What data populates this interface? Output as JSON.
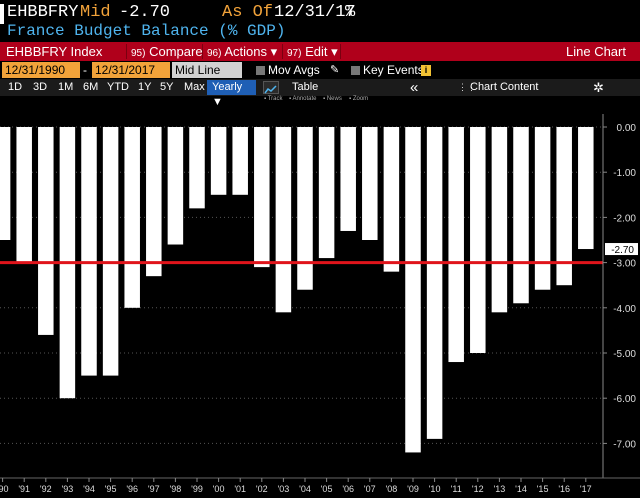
{
  "header": {
    "ticker": "EHBBFRY",
    "mid_label": "Mid",
    "mid_value": "-2.70",
    "asof_label": "As Of",
    "asof_value": "12/31/17",
    "pct_symbol": "%",
    "subtitle": "France Budget Balance (% GDP)"
  },
  "toolbar": {
    "index_label": "EHBBFRY Index",
    "compare_num": "95)",
    "compare_label": "Compare",
    "actions_num": "96)",
    "actions_label": "Actions ▾",
    "edit_num": "97)",
    "edit_label": "Edit ▾",
    "chart_type": "Line Chart"
  },
  "range_bar": {
    "start_date": "12/31/1990",
    "dash": "-",
    "end_date": "12/31/2017",
    "mode": "Mid Line",
    "mov_avgs": "Mov Avgs",
    "key_events": "Key Events",
    "key_events_badge": "i"
  },
  "period_bar": {
    "periods": [
      "1D",
      "3D",
      "1M",
      "6M",
      "YTD",
      "1Y",
      "5Y",
      "Max"
    ],
    "frequency": "Yearly ▼",
    "table_label": "Table",
    "collapse": "«",
    "chart_content": "Chart Content",
    "gear": "✲"
  },
  "chart_tools": {
    "track": "Track",
    "annotate": "Annotate",
    "news": "News",
    "zoom": "Zoom"
  },
  "colors": {
    "accent_orange": "#f2a33a",
    "toolbar_red": "#b0001b",
    "subtitle_blue": "#4fb4ee",
    "reference_line": "#e0141b",
    "bar_fill": "#ffffff"
  },
  "chart_data": {
    "type": "bar",
    "title": "France Budget Balance (% GDP)",
    "categories": [
      "'90",
      "'91",
      "'92",
      "'93",
      "'94",
      "'95",
      "'96",
      "'97",
      "'98",
      "'99",
      "'00",
      "'01",
      "'02",
      "'03",
      "'04",
      "'05",
      "'06",
      "'07",
      "'08",
      "'09",
      "'10",
      "'11",
      "'12",
      "'13",
      "'14",
      "'15",
      "'16",
      "'17"
    ],
    "values": [
      -2.5,
      -3.0,
      -4.6,
      -6.0,
      -5.5,
      -5.5,
      -4.0,
      -3.3,
      -2.6,
      -1.8,
      -1.5,
      -1.5,
      -3.1,
      -4.1,
      -3.6,
      -2.9,
      -2.3,
      -2.5,
      -3.2,
      -7.2,
      -6.9,
      -5.2,
      -5.0,
      -4.1,
      -3.9,
      -3.6,
      -3.5,
      -2.7
    ],
    "ylim": [
      -7.5,
      0
    ],
    "yticks": [
      0,
      -1,
      -2,
      -3,
      -4,
      -5,
      -6,
      -7
    ],
    "ytick_labels": [
      "0.00",
      "-1.00",
      "-2.00",
      "-3.00",
      "-4.00",
      "-5.00",
      "-6.00",
      "-7.00"
    ],
    "reference_line": -3.0,
    "last_value_label": "-2.70",
    "xlabel": "",
    "ylabel": ""
  }
}
